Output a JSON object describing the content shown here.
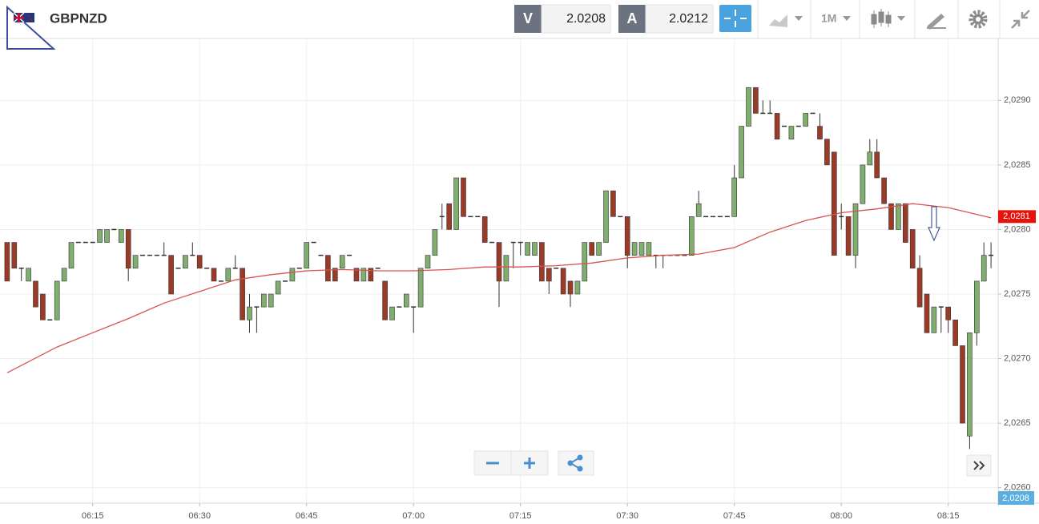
{
  "ui": {
    "symbol": "GBPNZD",
    "sell_label": "V",
    "sell_price": 2.0208,
    "buy_label": "A",
    "buy_price": 2.0212,
    "timeframe": "1M",
    "bid_axis_label": "2,0208"
  },
  "chart_data": {
    "type": "candlestick",
    "x": [
      "06:03",
      "06:04",
      "06:05",
      "06:06",
      "06:07",
      "06:08",
      "06:09",
      "06:10",
      "06:11",
      "06:12",
      "06:13",
      "06:14",
      "06:15",
      "06:16",
      "06:17",
      "06:18",
      "06:19",
      "06:20",
      "06:21",
      "06:22",
      "06:23",
      "06:24",
      "06:25",
      "06:26",
      "06:27",
      "06:28",
      "06:29",
      "06:30",
      "06:31",
      "06:32",
      "06:33",
      "06:34",
      "06:35",
      "06:36",
      "06:37",
      "06:38",
      "06:39",
      "06:40",
      "06:41",
      "06:42",
      "06:43",
      "06:44",
      "06:45",
      "06:46",
      "06:47",
      "06:48",
      "06:49",
      "06:50",
      "06:51",
      "06:52",
      "06:53",
      "06:54",
      "06:55",
      "06:56",
      "06:57",
      "06:58",
      "06:59",
      "07:00",
      "07:01",
      "07:02",
      "07:03",
      "07:04",
      "07:05",
      "07:06",
      "07:07",
      "07:08",
      "07:09",
      "07:10",
      "07:11",
      "07:12",
      "07:13",
      "07:14",
      "07:15",
      "07:16",
      "07:17",
      "07:18",
      "07:19",
      "07:20",
      "07:21",
      "07:22",
      "07:23",
      "07:24",
      "07:25",
      "07:26",
      "07:27",
      "07:28",
      "07:29",
      "07:30",
      "07:31",
      "07:32",
      "07:33",
      "07:34",
      "07:35",
      "07:36",
      "07:37",
      "07:38",
      "07:39",
      "07:40",
      "07:41",
      "07:42",
      "07:43",
      "07:44",
      "07:45",
      "07:46",
      "07:47",
      "07:48",
      "07:49",
      "07:50",
      "07:51",
      "07:52",
      "07:53",
      "07:54",
      "07:55",
      "07:56",
      "07:57",
      "07:58",
      "07:59",
      "08:00",
      "08:01",
      "08:02",
      "08:03",
      "08:04",
      "08:05",
      "08:06",
      "08:07",
      "08:08",
      "08:09",
      "08:10",
      "08:11",
      "08:12",
      "08:13",
      "08:14",
      "08:15",
      "08:16",
      "08:17",
      "08:18",
      "08:19",
      "08:20",
      "08:21"
    ],
    "open": [
      2.0279,
      2.0279,
      2.0277,
      2.0276,
      2.0276,
      2.0275,
      2.0273,
      2.0273,
      2.0276,
      2.0277,
      2.0279,
      2.0279,
      2.0279,
      2.0279,
      2.0279,
      2.028,
      2.0279,
      2.028,
      2.0277,
      2.0278,
      2.0278,
      2.0278,
      2.0278,
      2.0278,
      2.0277,
      2.0277,
      2.0278,
      2.0278,
      2.0277,
      2.0277,
      2.0276,
      2.0276,
      2.0277,
      2.0277,
      2.0273,
      2.0274,
      2.0274,
      2.0274,
      2.0275,
      2.0276,
      2.0276,
      2.0277,
      2.0277,
      2.0279,
      2.0278,
      2.0278,
      2.0277,
      2.0277,
      2.0278,
      2.0277,
      2.0276,
      2.0277,
      2.0277,
      2.0276,
      2.0273,
      2.0274,
      2.0274,
      2.0274,
      2.0274,
      2.0277,
      2.0278,
      2.0281,
      2.0282,
      2.028,
      2.0284,
      2.0281,
      2.0281,
      2.0281,
      2.0279,
      2.0279,
      2.0276,
      2.0279,
      2.0279,
      2.0278,
      2.0278,
      2.0279,
      2.0277,
      2.0277,
      2.0277,
      2.0276,
      2.0275,
      2.0276,
      2.0279,
      2.0278,
      2.0279,
      2.0283,
      2.0281,
      2.0281,
      2.0278,
      2.0278,
      2.0278,
      2.0278,
      2.0278,
      2.0278,
      2.0278,
      2.0278,
      2.0278,
      2.0281,
      2.0281,
      2.0281,
      2.0281,
      2.0281,
      2.0281,
      2.0284,
      2.0288,
      2.0291,
      2.0289,
      2.0289,
      2.0289,
      2.0288,
      2.0287,
      2.0288,
      2.0288,
      2.0289,
      2.0288,
      2.0287,
      2.0286,
      2.0281,
      2.0281,
      2.0278,
      2.0282,
      2.0285,
      2.0286,
      2.0284,
      2.0282,
      2.028,
      2.0282,
      2.028,
      2.0277,
      2.0275,
      2.0272,
      2.0274,
      2.0274,
      2.0273,
      2.0271,
      2.0264,
      2.0272,
      2.0276,
      2.0278
    ],
    "high": [
      2.0279,
      2.0279,
      2.0277,
      2.0277,
      2.0276,
      2.0275,
      2.0273,
      2.0276,
      2.0277,
      2.0279,
      2.0279,
      2.0279,
      2.0279,
      2.028,
      2.028,
      2.028,
      2.028,
      2.028,
      2.0278,
      2.0278,
      2.0278,
      2.0278,
      2.0279,
      2.0278,
      2.0277,
      2.0278,
      2.0279,
      2.0278,
      2.0277,
      2.0277,
      2.0276,
      2.0277,
      2.0278,
      2.0277,
      2.0275,
      2.0274,
      2.0275,
      2.0275,
      2.0276,
      2.0276,
      2.0277,
      2.0277,
      2.0279,
      2.0279,
      2.0278,
      2.0278,
      2.0277,
      2.0278,
      2.0278,
      2.0277,
      2.0277,
      2.0277,
      2.0277,
      2.0276,
      2.0274,
      2.0274,
      2.0275,
      2.0274,
      2.0277,
      2.0278,
      2.028,
      2.0282,
      2.0282,
      2.0284,
      2.0284,
      2.0281,
      2.0281,
      2.0281,
      2.0279,
      2.0279,
      2.0278,
      2.0279,
      2.0279,
      2.0279,
      2.0279,
      2.0279,
      2.0277,
      2.0277,
      2.0277,
      2.0276,
      2.0276,
      2.0279,
      2.0279,
      2.0279,
      2.0283,
      2.0283,
      2.0281,
      2.0281,
      2.0279,
      2.0279,
      2.0279,
      2.0278,
      2.0278,
      2.0278,
      2.0278,
      2.0278,
      2.0281,
      2.0283,
      2.0281,
      2.0281,
      2.0281,
      2.0281,
      2.0285,
      2.0288,
      2.0291,
      2.0291,
      2.029,
      2.029,
      2.0289,
      2.0288,
      2.0288,
      2.0288,
      2.0289,
      2.0289,
      2.0289,
      2.0287,
      2.0286,
      2.0282,
      2.0281,
      2.0282,
      2.0285,
      2.0287,
      2.0287,
      2.0284,
      2.0282,
      2.0282,
      2.0282,
      2.028,
      2.0278,
      2.0275,
      2.0274,
      2.0274,
      2.0274,
      2.0273,
      2.0271,
      2.0272,
      2.0276,
      2.0279,
      2.0279
    ],
    "low": [
      2.0276,
      2.0277,
      2.0276,
      2.0276,
      2.0274,
      2.0273,
      2.0273,
      2.0273,
      2.0276,
      2.0277,
      2.0279,
      2.0279,
      2.0279,
      2.0279,
      2.0279,
      2.028,
      2.0279,
      2.0276,
      2.0277,
      2.0278,
      2.0278,
      2.0278,
      2.0278,
      2.0275,
      2.0277,
      2.0277,
      2.0278,
      2.0277,
      2.0277,
      2.0276,
      2.0276,
      2.0276,
      2.0277,
      2.0273,
      2.0272,
      2.0272,
      2.0274,
      2.0274,
      2.0275,
      2.0276,
      2.0276,
      2.0277,
      2.0277,
      2.0279,
      2.0278,
      2.0276,
      2.0276,
      2.0277,
      2.0278,
      2.0276,
      2.0276,
      2.0276,
      2.0277,
      2.0273,
      2.0273,
      2.0274,
      2.0274,
      2.0272,
      2.0274,
      2.0277,
      2.0278,
      2.028,
      2.028,
      2.028,
      2.0281,
      2.0281,
      2.0281,
      2.0279,
      2.0279,
      2.0274,
      2.0276,
      2.0277,
      2.0278,
      2.0278,
      2.0278,
      2.0276,
      2.0275,
      2.0277,
      2.0275,
      2.0274,
      2.0275,
      2.0276,
      2.0278,
      2.0278,
      2.0279,
      2.0281,
      2.0281,
      2.0277,
      2.0278,
      2.0278,
      2.0278,
      2.0277,
      2.0277,
      2.0278,
      2.0278,
      2.0278,
      2.0278,
      2.0281,
      2.0281,
      2.0281,
      2.0281,
      2.0281,
      2.0281,
      2.0284,
      2.0288,
      2.0289,
      2.0289,
      2.0289,
      2.0287,
      2.0288,
      2.0287,
      2.0288,
      2.0288,
      2.0289,
      2.0287,
      2.0285,
      2.0278,
      2.028,
      2.0278,
      2.0277,
      2.0282,
      2.0285,
      2.0284,
      2.0282,
      2.028,
      2.028,
      2.0279,
      2.0277,
      2.0274,
      2.0272,
      2.0272,
      2.0272,
      2.0272,
      2.0271,
      2.0265,
      2.0263,
      2.0271,
      2.0276,
      2.0277
    ],
    "close": [
      2.0276,
      2.0277,
      2.0277,
      2.0277,
      2.0274,
      2.0273,
      2.0273,
      2.0276,
      2.0277,
      2.0279,
      2.0279,
      2.0279,
      2.0279,
      2.028,
      2.028,
      2.028,
      2.028,
      2.0277,
      2.0278,
      2.0278,
      2.0278,
      2.0278,
      2.0278,
      2.0275,
      2.0277,
      2.0278,
      2.0278,
      2.0277,
      2.0277,
      2.0276,
      2.0276,
      2.0277,
      2.0277,
      2.0273,
      2.0274,
      2.0274,
      2.0275,
      2.0275,
      2.0276,
      2.0276,
      2.0277,
      2.0277,
      2.0279,
      2.0279,
      2.0278,
      2.0276,
      2.0276,
      2.0278,
      2.0278,
      2.0276,
      2.0277,
      2.0276,
      2.0277,
      2.0273,
      2.0274,
      2.0274,
      2.0275,
      2.0274,
      2.0277,
      2.0278,
      2.028,
      2.0281,
      2.028,
      2.0284,
      2.0281,
      2.0281,
      2.0281,
      2.0279,
      2.0279,
      2.0276,
      2.0278,
      2.0279,
      2.0279,
      2.0279,
      2.0279,
      2.0276,
      2.0276,
      2.0277,
      2.0275,
      2.0275,
      2.0276,
      2.0279,
      2.0278,
      2.0279,
      2.0283,
      2.0281,
      2.0281,
      2.0278,
      2.0279,
      2.0279,
      2.0279,
      2.0278,
      2.0278,
      2.0278,
      2.0278,
      2.0278,
      2.0281,
      2.0282,
      2.0281,
      2.0281,
      2.0281,
      2.0281,
      2.0284,
      2.0288,
      2.0291,
      2.0289,
      2.0289,
      2.0289,
      2.0287,
      2.0288,
      2.0288,
      2.0288,
      2.0289,
      2.0289,
      2.0287,
      2.0285,
      2.0278,
      2.0281,
      2.0278,
      2.0282,
      2.0285,
      2.0286,
      2.0284,
      2.0282,
      2.028,
      2.0282,
      2.0279,
      2.0277,
      2.0274,
      2.0272,
      2.0274,
      2.0274,
      2.0273,
      2.0271,
      2.0265,
      2.0272,
      2.0276,
      2.0278,
      2.0278
    ],
    "up_color": "#7fae6f",
    "down_color": "#9b3b27",
    "series": [
      {
        "color": "#d9534f",
        "x": [
          "06:03",
          "06:10",
          "06:15",
          "06:20",
          "06:25",
          "06:30",
          "06:35",
          "06:40",
          "06:45",
          "06:50",
          "06:55",
          "07:00",
          "07:05",
          "07:10",
          "07:15",
          "07:20",
          "07:25",
          "07:30",
          "07:35",
          "07:40",
          "07:45",
          "07:50",
          "07:55",
          "08:00",
          "08:05",
          "08:10",
          "08:15",
          "08:21"
        ],
        "values": [
          2.02689,
          2.02709,
          2.0272,
          2.02731,
          2.02743,
          2.02752,
          2.02761,
          2.02765,
          2.02768,
          2.02769,
          2.02768,
          2.02768,
          2.02769,
          2.02771,
          2.02771,
          2.02772,
          2.02774,
          2.02778,
          2.0278,
          2.02781,
          2.02786,
          2.02798,
          2.02807,
          2.02813,
          2.02816,
          2.0282,
          2.02817,
          2.02809
        ]
      }
    ],
    "price_marker": {
      "value": 2.0281,
      "label": "2,0281",
      "color": "#e8120c"
    },
    "xlim": [
      "06:02",
      "08:22"
    ],
    "xticks": [
      "06:15",
      "06:30",
      "06:45",
      "07:00",
      "07:15",
      "07:30",
      "07:45",
      "08:00",
      "08:15"
    ],
    "ylim": [
      2.02588,
      2.02948
    ],
    "yticks": [
      {
        "value": 2.026,
        "label": "2,0260"
      },
      {
        "value": 2.0265,
        "label": "2,0265"
      },
      {
        "value": 2.027,
        "label": "2,0270"
      },
      {
        "value": 2.0275,
        "label": "2,0275"
      },
      {
        "value": 2.028,
        "label": "2,0280"
      },
      {
        "value": 2.0285,
        "label": "2,0285"
      },
      {
        "value": 2.029,
        "label": "2,0290"
      }
    ],
    "grid": true
  }
}
